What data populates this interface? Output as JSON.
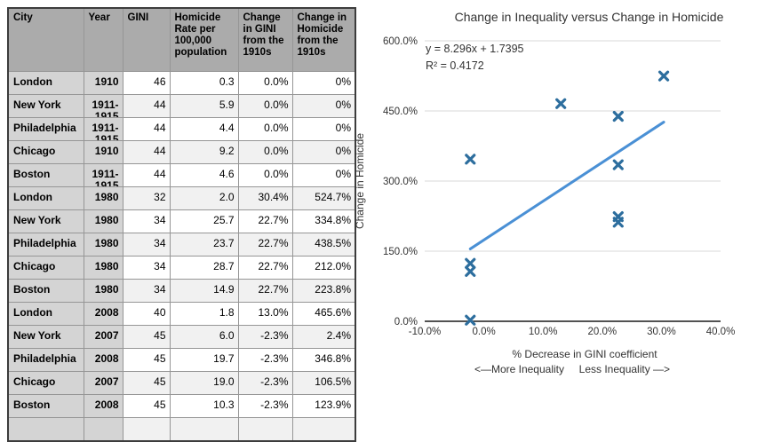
{
  "table": {
    "headers": [
      {
        "id": "city",
        "label": "City"
      },
      {
        "id": "year",
        "label": "Year"
      },
      {
        "id": "gini",
        "label": "GINI"
      },
      {
        "id": "rate",
        "label": "Homicide Rate per 100,000 population"
      },
      {
        "id": "gini_change",
        "label": "Change in GINI from the 1910s"
      },
      {
        "id": "hom_change",
        "label": "Change in Homicide from the 1910s"
      }
    ],
    "rows": [
      {
        "city": "London",
        "year": "1910",
        "year2": "",
        "gini": "46",
        "rate": "0.3",
        "gini_change": "0.0%",
        "hom_change": "0%"
      },
      {
        "city": "New York",
        "year": "1911-",
        "year2": "1915",
        "gini": "44",
        "rate": "5.9",
        "gini_change": "0.0%",
        "hom_change": "0%"
      },
      {
        "city": "Philadelphia",
        "year": "1911-",
        "year2": "1915",
        "gini": "44",
        "rate": "4.4",
        "gini_change": "0.0%",
        "hom_change": "0%"
      },
      {
        "city": "Chicago",
        "year": "1910",
        "year2": "",
        "gini": "44",
        "rate": "9.2",
        "gini_change": "0.0%",
        "hom_change": "0%"
      },
      {
        "city": "Boston",
        "year": "1911-",
        "year2": "1915",
        "gini": "44",
        "rate": "4.6",
        "gini_change": "0.0%",
        "hom_change": "0%"
      },
      {
        "city": "London",
        "year": "1980",
        "year2": "",
        "gini": "32",
        "rate": "2.0",
        "gini_change": "30.4%",
        "hom_change": "524.7%"
      },
      {
        "city": "New York",
        "year": "1980",
        "year2": "",
        "gini": "34",
        "rate": "25.7",
        "gini_change": "22.7%",
        "hom_change": "334.8%"
      },
      {
        "city": "Philadelphia",
        "year": "1980",
        "year2": "",
        "gini": "34",
        "rate": "23.7",
        "gini_change": "22.7%",
        "hom_change": "438.5%"
      },
      {
        "city": "Chicago",
        "year": "1980",
        "year2": "",
        "gini": "34",
        "rate": "28.7",
        "gini_change": "22.7%",
        "hom_change": "212.0%"
      },
      {
        "city": "Boston",
        "year": "1980",
        "year2": "",
        "gini": "34",
        "rate": "14.9",
        "gini_change": "22.7%",
        "hom_change": "223.8%"
      },
      {
        "city": "London",
        "year": "2008",
        "year2": "",
        "gini": "40",
        "rate": "1.8",
        "gini_change": "13.0%",
        "hom_change": "465.6%"
      },
      {
        "city": "New York",
        "year": "2007",
        "year2": "",
        "gini": "45",
        "rate": "6.0",
        "gini_change": "-2.3%",
        "hom_change": "2.4%"
      },
      {
        "city": "Philadelphia",
        "year": "2008",
        "year2": "",
        "gini": "45",
        "rate": "19.7",
        "gini_change": "-2.3%",
        "hom_change": "346.8%"
      },
      {
        "city": "Chicago",
        "year": "2007",
        "year2": "",
        "gini": "45",
        "rate": "19.0",
        "gini_change": "-2.3%",
        "hom_change": "106.5%"
      },
      {
        "city": "Boston",
        "year": "2008",
        "year2": "",
        "gini": "45",
        "rate": "10.3",
        "gini_change": "-2.3%",
        "hom_change": "123.9%"
      },
      {
        "city": "",
        "year": "",
        "year2": "",
        "gini": "",
        "rate": "",
        "gini_change": "",
        "hom_change": ""
      }
    ]
  },
  "chart_data": {
    "type": "scatter",
    "title": "Change in Inequality versus Change in Homicide",
    "equation": "y = 8.296x + 1.7395",
    "r_squared": "R² = 0.4172",
    "xlabel": "% Decrease in GINI coefficient",
    "xlabel2": "<—More Inequality     Less Inequality —>",
    "ylabel": "Change in Homicide",
    "xlim": [
      -0.1,
      0.4
    ],
    "ylim": [
      0,
      6.0
    ],
    "x_tick_values": [
      -0.1,
      0.0,
      0.1,
      0.2,
      0.3,
      0.4
    ],
    "x_tick_labels": [
      "-10.0%",
      "0.0%",
      "10.0%",
      "20.0%",
      "30.0%",
      "40.0%"
    ],
    "y_tick_values": [
      0,
      1.5,
      3.0,
      4.5,
      6.0
    ],
    "y_tick_labels": [
      "0.0%",
      "150.0%",
      "300.0%",
      "450.0%",
      "600.0%"
    ],
    "grid": true,
    "legend": "none",
    "points": [
      {
        "x": -0.023,
        "y": 0.024
      },
      {
        "x": -0.023,
        "y": 1.065
      },
      {
        "x": -0.023,
        "y": 1.239
      },
      {
        "x": -0.023,
        "y": 3.468
      },
      {
        "x": 0.13,
        "y": 4.656
      },
      {
        "x": 0.227,
        "y": 2.12
      },
      {
        "x": 0.227,
        "y": 2.238
      },
      {
        "x": 0.227,
        "y": 3.348
      },
      {
        "x": 0.227,
        "y": 4.385
      },
      {
        "x": 0.304,
        "y": 5.247
      }
    ],
    "trendline": {
      "slope": 8.296,
      "intercept": 1.7395,
      "x_start": -0.023,
      "x_end": 0.304
    },
    "colors": {
      "marker": "#2d6e9e",
      "trendline": "#4a90d5",
      "gridline": "#d9d9d9",
      "axis": "#1a1a1a",
      "text": "#333333"
    }
  }
}
